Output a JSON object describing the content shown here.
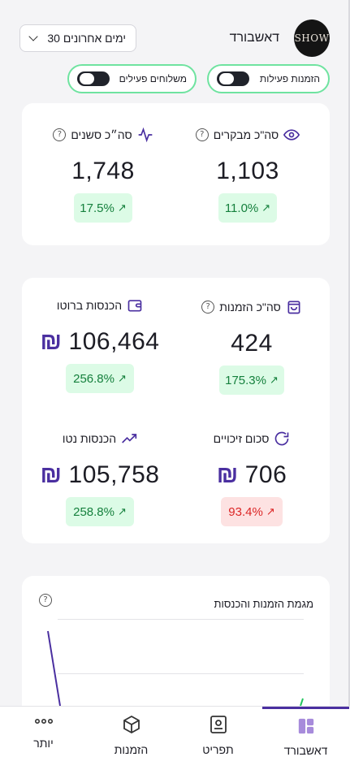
{
  "header": {
    "logo_text": "SHOW",
    "title": "דאשבורד",
    "range_label": "30 ימים אחרונים"
  },
  "toggles": {
    "active_orders": "הזמנות פעילות",
    "active_deliveries": "משלוחים פעילים"
  },
  "metrics": {
    "visitors": {
      "title": "סה\"כ מבקרים",
      "value": "1,103",
      "change": "11.0%",
      "trend": "up"
    },
    "sessions": {
      "title": "סה״כ סשנים",
      "value": "1,748",
      "change": "17.5%",
      "trend": "up"
    },
    "orders": {
      "title": "סה\"כ הזמנות",
      "value": "424",
      "change": "175.3%",
      "trend": "up"
    },
    "gross": {
      "title": "הכנסות ברוטו",
      "currency": "₪",
      "value": "106,464",
      "change": "256.8%",
      "trend": "up"
    },
    "refunds": {
      "title": "סכום זיכויים",
      "currency": "₪",
      "value": "706",
      "change": "93.4%",
      "trend": "down"
    },
    "net": {
      "title": "הכנסות נטו",
      "currency": "₪",
      "value": "105,758",
      "change": "258.8%",
      "trend": "up"
    }
  },
  "chart": {
    "title": "מגמת הזמנות והכנסות"
  },
  "nav": {
    "dashboard": "דאשבורד",
    "menu": "תפריט",
    "orders": "הזמנות",
    "more": "יותר"
  },
  "colors": {
    "accent": "#4a2fa0",
    "positive_bg": "#dcfbe6",
    "positive_text": "#15803d",
    "negative_bg": "#fde2e2",
    "negative_text": "#dc2626",
    "toggle_border": "#6fe3a0"
  }
}
